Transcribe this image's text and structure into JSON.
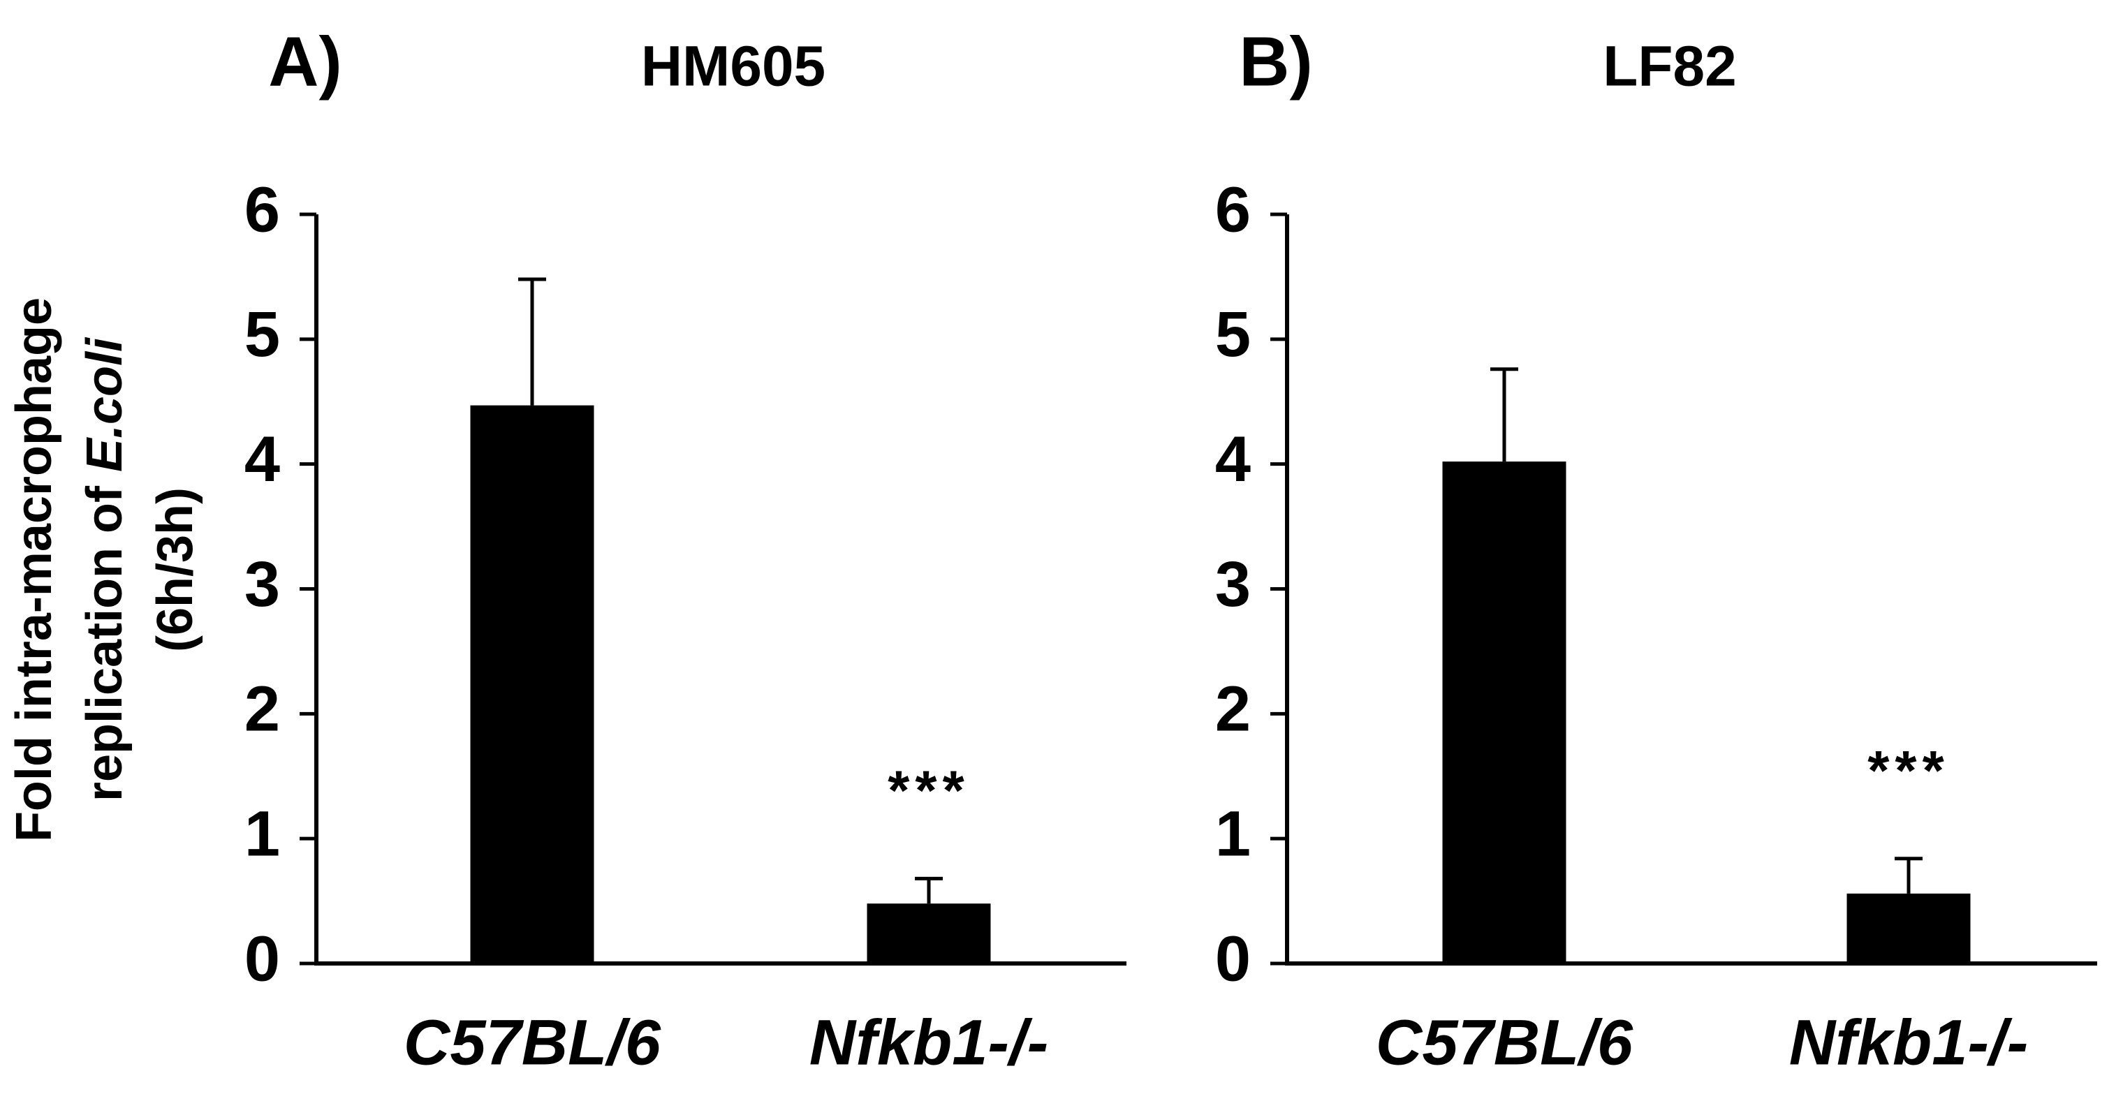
{
  "chart_data": [
    {
      "type": "bar",
      "panel": "A)",
      "title": "HM605",
      "ylabel": [
        "Fold intra-macrophage",
        "replication of ",
        "E.coli",
        "(6h/3h)"
      ],
      "categories": [
        "C57BL/6",
        "Nfkb1-/-"
      ],
      "series": [
        {
          "color": "#000000",
          "values": [
            4.47,
            0.48
          ],
          "errors": [
            1.01,
            0.2
          ]
        }
      ],
      "annotations": [
        {
          "index": 1,
          "text": "***"
        }
      ],
      "ylim": [
        0,
        6
      ],
      "yticks": [
        0,
        1,
        2,
        3,
        4,
        5,
        6
      ]
    },
    {
      "type": "bar",
      "panel": "B)",
      "title": "LF82",
      "categories": [
        "C57BL/6",
        "Nfkb1-/-"
      ],
      "series": [
        {
          "color": "#000000",
          "values": [
            4.02,
            0.56
          ],
          "errors": [
            0.74,
            0.28
          ]
        }
      ],
      "annotations": [
        {
          "index": 1,
          "text": "***"
        }
      ],
      "ylim": [
        0,
        6
      ],
      "yticks": [
        0,
        1,
        2,
        3,
        4,
        5,
        6
      ]
    }
  ]
}
